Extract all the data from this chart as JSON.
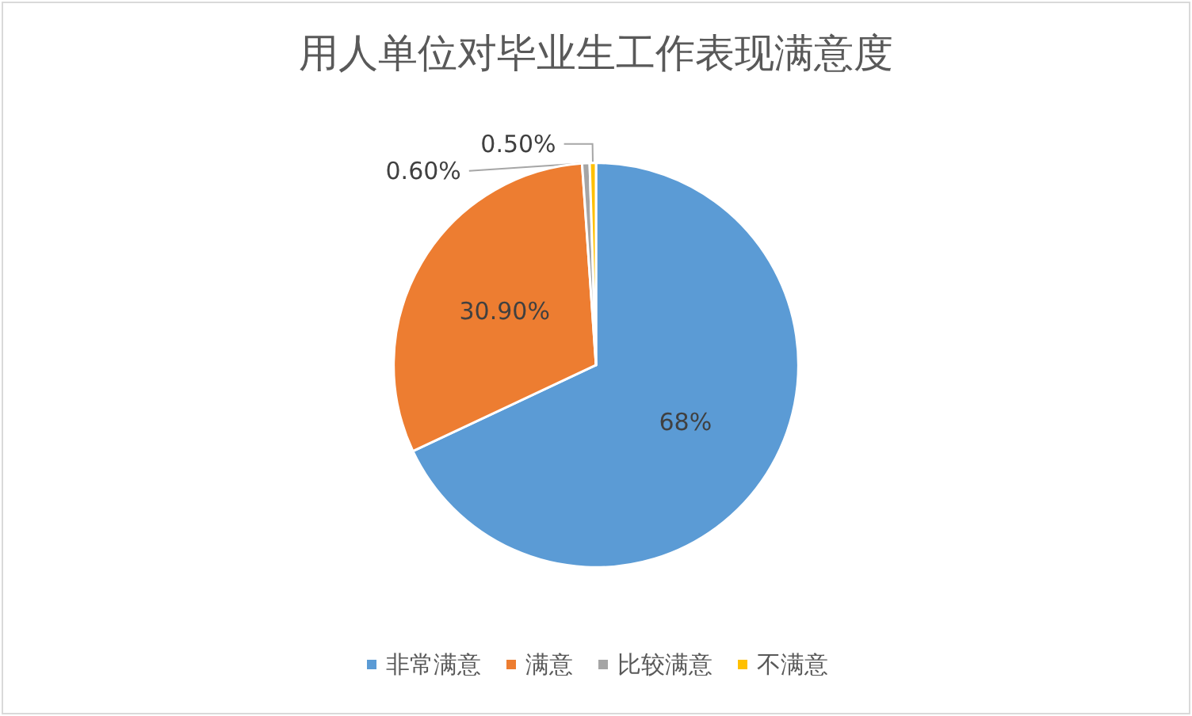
{
  "chart_data": {
    "type": "pie",
    "title": "用人单位对毕业生工作表现满意度",
    "categories": [
      "非常满意",
      "满意",
      "比较满意",
      "不满意"
    ],
    "values": [
      68,
      30.9,
      0.6,
      0.5
    ],
    "value_labels": [
      "68%",
      "30.90%",
      "0.60%",
      "0.50%"
    ],
    "colors": [
      "#5b9bd5",
      "#ed7d31",
      "#a5a5a5",
      "#ffc000"
    ],
    "legend": "bottom"
  }
}
